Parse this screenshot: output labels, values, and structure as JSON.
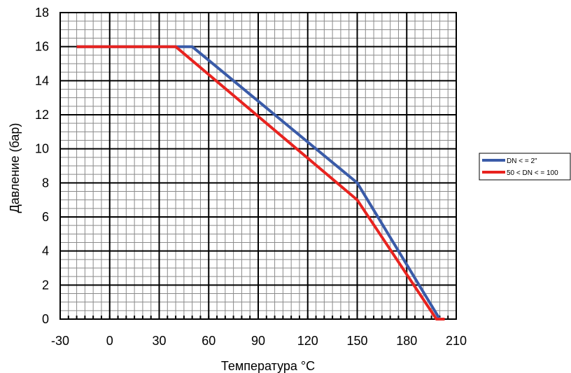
{
  "chart_data": {
    "type": "line",
    "title": "",
    "xlabel": "Температура °C",
    "ylabel": "Давление (бар)",
    "xlim": [
      -30,
      210
    ],
    "ylim": [
      0,
      18
    ],
    "x_major_ticks": [
      -30,
      0,
      30,
      60,
      90,
      120,
      150,
      180,
      210
    ],
    "y_major_ticks": [
      0,
      2,
      4,
      6,
      8,
      10,
      12,
      14,
      16,
      18
    ],
    "x_tick_labels": [
      "-30",
      "0",
      "30",
      "60",
      "90",
      "120",
      "150",
      "180",
      "210"
    ],
    "y_tick_labels": [
      "0",
      "2",
      "4",
      "6",
      "8",
      "10",
      "12",
      "14",
      "16",
      "18"
    ],
    "grid": true,
    "legend_position": "right",
    "series": [
      {
        "name": "DN < = 2\"",
        "color": "#3a5ba8",
        "x": [
          -20,
          50,
          150,
          200,
          203
        ],
        "y": [
          16,
          16,
          8,
          0,
          0
        ]
      },
      {
        "name": "50 < DN < = 100",
        "color": "#e8231f",
        "x": [
          -20,
          40,
          150,
          198,
          203
        ],
        "y": [
          16,
          16,
          7,
          0,
          0
        ]
      }
    ]
  }
}
